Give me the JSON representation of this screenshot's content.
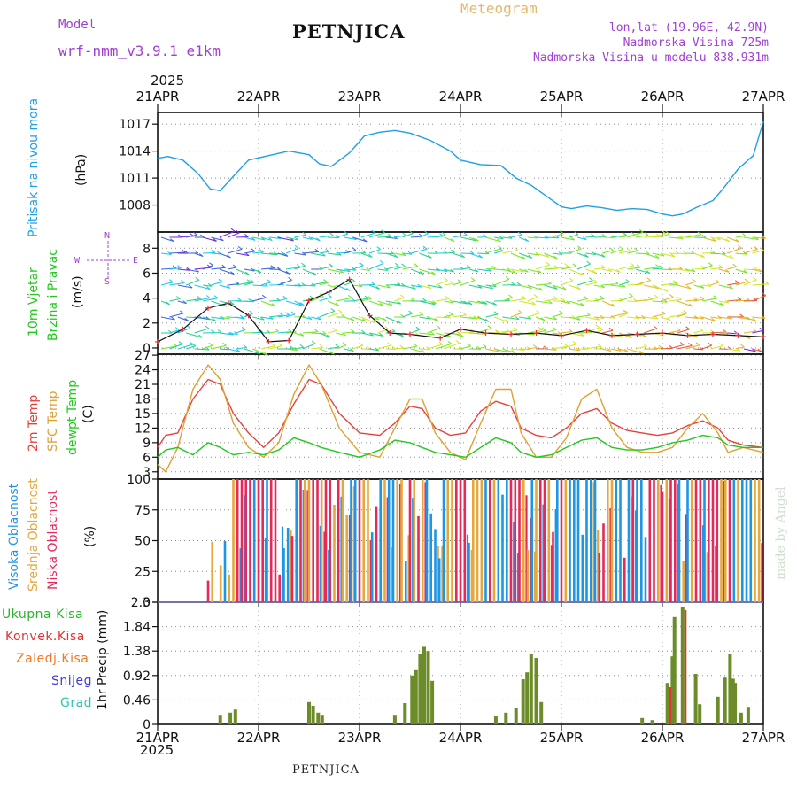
{
  "header": {
    "model_label": "Model",
    "model_name": "wrf-nmm_v3.9.1 e1km",
    "station": "PETNJICA",
    "meteogram": "Meteogram",
    "lonlat": "lon,lat (19.96E, 42.9N)",
    "altitude": "Nadmorska Visina 725m",
    "model_altitude": "Nadmorska Visina u modelu 838.931m",
    "year": "2025",
    "footer": "PETNJICA",
    "watermark": "made by Angel"
  },
  "colors": {
    "pressure": "#1ea0e6",
    "temp2m": "#e8403a",
    "sfc": "#e0a030",
    "dewpt": "#22c81e",
    "high_cloud": "#1e96e6",
    "mid_cloud": "#e6a83c",
    "low_cloud": "#e6285a",
    "precip_total": "#28b428",
    "precip_conv": "#e63232",
    "precip_frz": "#f07828",
    "snow": "#3c3cdc",
    "hail": "#28c8b4",
    "model_text": "#a040d0"
  },
  "time_axis": {
    "labels": [
      "21APR",
      "22APR",
      "23APR",
      "24APR",
      "25APR",
      "26APR",
      "27APR"
    ],
    "year": "2025"
  },
  "panels": {
    "pressure": {
      "ylabels": [
        "Pritisak na nivou mora",
        "(hPa)"
      ]
    },
    "wind": {
      "ylabels": [
        "10m Vjetar",
        "Brzina i Pravac",
        "(m/s)"
      ],
      "compass": {
        "n": "N",
        "s": "S",
        "e": "E",
        "w": "W"
      }
    },
    "temp": {
      "ylabels": [
        "2m Temp",
        "SFC Temp",
        "dewpt Temp",
        "(C)"
      ]
    },
    "cloud": {
      "ylabels": [
        "Visoka Oblacnost",
        "Srednja Oblacnost",
        "Niska Oblacnost",
        "(%)"
      ]
    },
    "precip": {
      "legend": [
        "Ukupna Kisa",
        "Konvek.Kisa",
        "Zaledj.Kisa",
        "Snijeg",
        "Grad"
      ],
      "ylabels": [
        "1hr Precip (mm)"
      ]
    }
  },
  "chart_data": [
    {
      "type": "line",
      "name": "pressure",
      "ylabel": "Pritisak na nivou mora (hPa)",
      "ylim": [
        1005,
        1018.3
      ],
      "yticks": [
        1008,
        1011,
        1014,
        1017
      ],
      "x": [
        0,
        0.1,
        0.25,
        0.4,
        0.52,
        0.62,
        0.75,
        0.9,
        1.1,
        1.3,
        1.5,
        1.6,
        1.72,
        1.9,
        2.05,
        2.2,
        2.35,
        2.5,
        2.7,
        2.9,
        3.0,
        3.2,
        3.4,
        3.55,
        3.7,
        3.85,
        4.0,
        4.1,
        4.25,
        4.4,
        4.55,
        4.7,
        4.85,
        5.0,
        5.1,
        5.2,
        5.35,
        5.5,
        5.6,
        5.75,
        5.9,
        6.0
      ],
      "series": [
        {
          "values": [
            1013.2,
            1013.4,
            1013.0,
            1011.5,
            1009.8,
            1009.6,
            1011.2,
            1013.0,
            1013.5,
            1014.0,
            1013.6,
            1012.6,
            1012.3,
            1013.8,
            1015.7,
            1016.1,
            1016.3,
            1016.0,
            1015.2,
            1014.0,
            1013.0,
            1012.5,
            1012.4,
            1011.0,
            1010.2,
            1009.0,
            1007.8,
            1007.6,
            1007.9,
            1007.7,
            1007.4,
            1007.6,
            1007.5,
            1007.0,
            1006.8,
            1007.0,
            1007.8,
            1008.5,
            1009.8,
            1012.0,
            1013.5,
            1017.3
          ]
        }
      ]
    },
    {
      "type": "line",
      "name": "wind",
      "ylabel": "10m Vjetar Brzina i Pravac (m/s)",
      "ylim": [
        -0.5,
        9.3
      ],
      "yticks": [
        0,
        2,
        4,
        6,
        8
      ],
      "x": [
        0,
        0.25,
        0.5,
        0.7,
        0.9,
        1.1,
        1.3,
        1.5,
        1.7,
        1.9,
        2.1,
        2.3,
        2.5,
        2.8,
        3.0,
        3.25,
        3.5,
        3.75,
        4.0,
        4.25,
        4.5,
        4.75,
        5.0,
        5.25,
        5.5,
        5.75,
        6.0
      ],
      "series": [
        {
          "values": [
            0.5,
            1.5,
            3.2,
            3.6,
            2.6,
            0.5,
            0.6,
            3.8,
            4.5,
            5.5,
            2.6,
            1.2,
            1.1,
            0.8,
            1.5,
            1.2,
            1.1,
            1.2,
            1.0,
            1.4,
            1.0,
            1.1,
            1.2,
            1.0,
            1.1,
            1.0,
            0.9
          ]
        }
      ]
    },
    {
      "type": "line",
      "name": "temperature",
      "ylabel": "(C)",
      "ylim": [
        1.5,
        27.2
      ],
      "yticks": [
        3,
        6,
        9,
        12,
        15,
        18,
        21,
        24,
        27
      ],
      "x": [
        0,
        0.08,
        0.2,
        0.35,
        0.5,
        0.62,
        0.75,
        0.9,
        1.05,
        1.2,
        1.35,
        1.5,
        1.62,
        1.8,
        2.0,
        2.2,
        2.35,
        2.5,
        2.62,
        2.75,
        2.9,
        3.05,
        3.2,
        3.35,
        3.5,
        3.6,
        3.75,
        3.9,
        4.05,
        4.2,
        4.35,
        4.5,
        4.65,
        4.8,
        4.95,
        5.1,
        5.25,
        5.4,
        5.55,
        5.65,
        5.8,
        6.0
      ],
      "series": [
        {
          "name": "2m Temp",
          "values": [
            8,
            10.5,
            11,
            18,
            22,
            21,
            15,
            11,
            8,
            11,
            17,
            22,
            21,
            15,
            11,
            10.5,
            13,
            16.5,
            16,
            12,
            10.5,
            11,
            15.5,
            17.5,
            16.5,
            12,
            10.5,
            10,
            12,
            15,
            16,
            13,
            11.5,
            11,
            10.5,
            11,
            12.5,
            13.5,
            12,
            9.5,
            8.5,
            8
          ]
        },
        {
          "name": "SFC Temp",
          "values": [
            4.5,
            3,
            8,
            20,
            25,
            22,
            13,
            8,
            6,
            9,
            19,
            25,
            21,
            12,
            7,
            6,
            12,
            18,
            18,
            11,
            7,
            5.5,
            13,
            20,
            20,
            11,
            6,
            6,
            10,
            18,
            20,
            12,
            8,
            7,
            7,
            8,
            12,
            15,
            11,
            7,
            8,
            7
          ]
        },
        {
          "name": "dewpt Temp",
          "values": [
            6,
            7.5,
            8,
            6.5,
            9,
            8,
            6.5,
            7,
            6.5,
            7.5,
            10,
            9,
            8,
            7,
            6,
            7.5,
            9.5,
            9,
            8,
            7,
            6.5,
            6,
            8,
            10,
            9,
            7,
            6,
            6.5,
            8,
            9.5,
            10,
            8,
            7.5,
            7.5,
            8,
            9,
            9.5,
            10.5,
            10,
            8.5,
            8,
            8
          ]
        }
      ]
    },
    {
      "type": "bar",
      "name": "cloud_cover",
      "ylabel": "(%)",
      "ylim": [
        0,
        100
      ],
      "yticks": [
        0,
        25,
        50,
        75,
        100
      ],
      "series": [
        {
          "name": "Visoka Oblacnost"
        },
        {
          "name": "Srednja Oblacnost"
        },
        {
          "name": "Niska Oblacnost"
        }
      ],
      "overview": "hourly bars; near 0% before ~21APR 12h, mostly 100% from ~21APR 18h to 27APR"
    },
    {
      "type": "bar",
      "name": "precipitation",
      "ylabel": "1hr Precip (mm)",
      "ylim": [
        0,
        2.3
      ],
      "yticks": [
        0,
        0.46,
        0.92,
        1.38,
        1.84,
        2.3
      ],
      "series": [
        {
          "name": "Ukupna Kisa",
          "x": [
            0.62,
            0.72,
            0.77,
            1.5,
            1.54,
            1.59,
            1.63,
            2.35,
            2.45,
            2.52,
            2.56,
            2.6,
            2.64,
            2.68,
            2.72,
            3.35,
            3.45,
            3.55,
            3.62,
            3.66,
            3.7,
            3.75,
            3.8,
            4.8,
            4.9,
            5.05,
            5.1,
            5.12,
            5.2,
            5.33,
            5.37,
            5.55,
            5.62,
            5.67,
            5.7,
            5.72,
            5.78,
            5.85
          ],
          "values": [
            0.18,
            0.22,
            0.28,
            0.42,
            0.35,
            0.22,
            0.18,
            0.18,
            0.4,
            0.92,
            1.02,
            1.32,
            1.46,
            1.38,
            0.82,
            0.15,
            0.22,
            0.3,
            0.85,
            0.98,
            1.32,
            1.25,
            0.42,
            0.12,
            0.08,
            0.78,
            1.28,
            2.02,
            2.2,
            0.95,
            0.38,
            0.52,
            0.88,
            1.32,
            0.86,
            0.78,
            0.22,
            0.33
          ]
        },
        {
          "name": "Konvek.Kisa",
          "x": [
            5.05,
            5.2
          ],
          "values": [
            0.7,
            2.15
          ]
        }
      ]
    }
  ]
}
